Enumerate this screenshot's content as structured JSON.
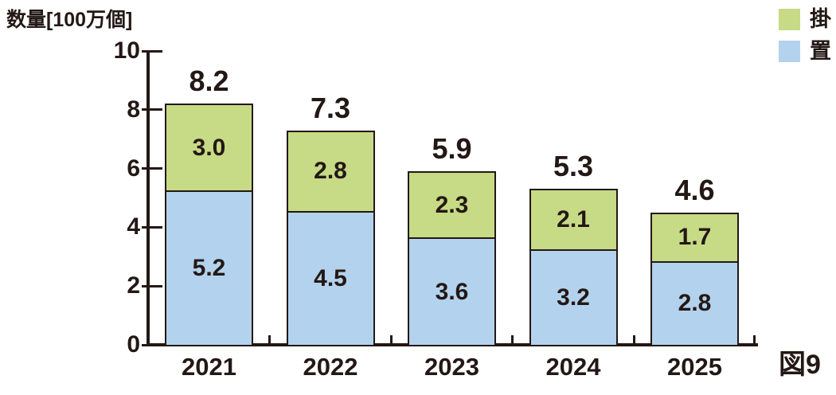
{
  "title": "数量[100万個]",
  "figure_label": "図9",
  "legend": [
    {
      "label": "掛",
      "color": "#c7da85"
    },
    {
      "label": "置",
      "color": "#b3d2ed"
    }
  ],
  "colors": {
    "bar_border": "#231815",
    "axis": "#231815",
    "text": "#231815"
  },
  "chart_data": {
    "type": "bar",
    "stacked": true,
    "title": "数量[100万個]",
    "ylabel": "数量[100万個]",
    "xlabel": "",
    "categories": [
      "2021",
      "2022",
      "2023",
      "2024",
      "2025"
    ],
    "series": [
      {
        "name": "置",
        "color": "#b3d2ed",
        "values": [
          5.2,
          4.5,
          3.6,
          3.2,
          2.8
        ]
      },
      {
        "name": "掛",
        "color": "#c7da85",
        "values": [
          3.0,
          2.8,
          2.3,
          2.1,
          1.7
        ]
      }
    ],
    "total_labels": [
      "8.2",
      "7.3",
      "5.9",
      "5.3",
      "4.6"
    ],
    "ylim": [
      0,
      10
    ],
    "yticks": [
      0,
      2,
      4,
      6,
      8,
      10
    ],
    "grid": false,
    "legend_position": "top-right"
  }
}
